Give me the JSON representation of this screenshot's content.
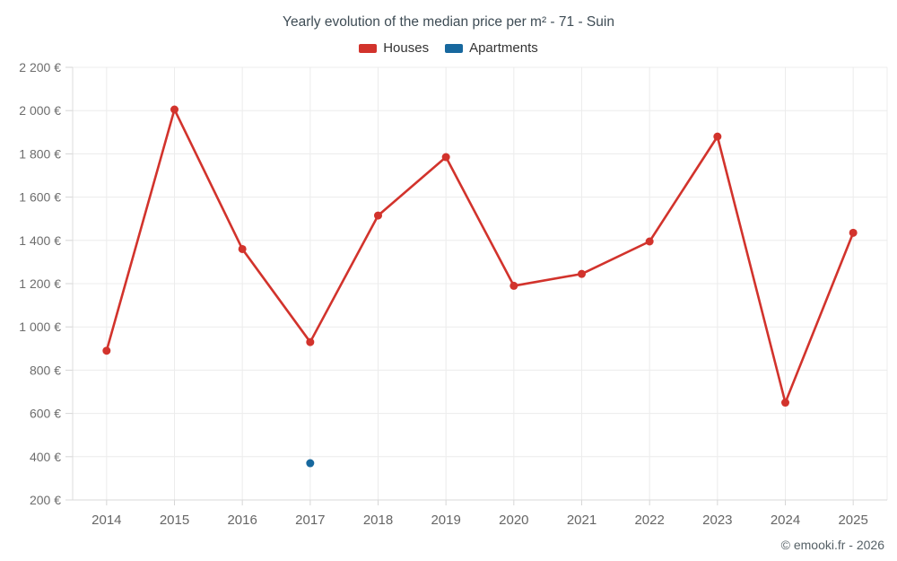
{
  "header": {
    "title": "Yearly evolution of the median price per m² - 71 - Suin",
    "legend": [
      {
        "label": "Houses",
        "color": "#d2332c"
      },
      {
        "label": "Apartments",
        "color": "#17689e"
      }
    ]
  },
  "footer": {
    "credit": "© emooki.fr - 2026"
  },
  "chart_data": {
    "type": "line",
    "title": "Yearly evolution of the median price per m² - 71 - Suin",
    "categories": [
      "2014",
      "2015",
      "2016",
      "2017",
      "2018",
      "2019",
      "2020",
      "2021",
      "2022",
      "2023",
      "2024",
      "2025"
    ],
    "series": [
      {
        "name": "Houses",
        "color": "#d2332c",
        "values": [
          890,
          2005,
          1360,
          930,
          1515,
          1785,
          1190,
          1245,
          1395,
          1880,
          650,
          1435
        ]
      },
      {
        "name": "Apartments",
        "color": "#17689e",
        "values": [
          null,
          null,
          null,
          370,
          null,
          null,
          null,
          null,
          null,
          null,
          null,
          null
        ]
      }
    ],
    "xlabel": "",
    "ylabel": "",
    "ylim": [
      200,
      2200
    ],
    "y_tick_step": 200,
    "y_tick_labels": [
      "200 €",
      "400 €",
      "600 €",
      "800 €",
      "1 000 €",
      "1 200 €",
      "1 400 €",
      "1 600 €",
      "1 800 €",
      "2 000 €",
      "2 200 €"
    ],
    "grid": true,
    "legend_position": "top",
    "currency_suffix": "€"
  }
}
